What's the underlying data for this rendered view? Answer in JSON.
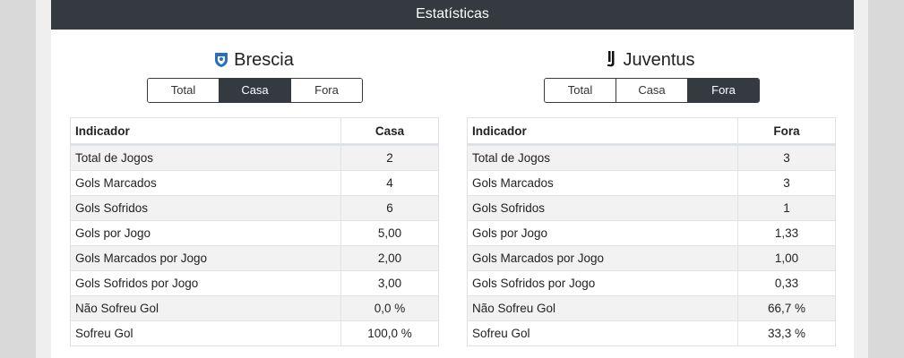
{
  "header": {
    "title": "Estatísticas"
  },
  "teams": [
    {
      "name": "Brescia",
      "tabs": [
        "Total",
        "Casa",
        "Fora"
      ],
      "active_tab": 1,
      "table": {
        "columns": [
          "Indicador",
          "Casa"
        ],
        "rows": [
          [
            "Total de Jogos",
            "2"
          ],
          [
            "Gols Marcados",
            "4"
          ],
          [
            "Gols Sofridos",
            "6"
          ],
          [
            "Gols por Jogo",
            "5,00"
          ],
          [
            "Gols Marcados por Jogo",
            "2,00"
          ],
          [
            "Gols Sofridos por Jogo",
            "3,00"
          ],
          [
            "Não Sofreu Gol",
            "0,0 %"
          ],
          [
            "Sofreu Gol",
            "100,0 %"
          ]
        ]
      }
    },
    {
      "name": "Juventus",
      "tabs": [
        "Total",
        "Casa",
        "Fora"
      ],
      "active_tab": 2,
      "table": {
        "columns": [
          "Indicador",
          "Fora"
        ],
        "rows": [
          [
            "Total de Jogos",
            "3"
          ],
          [
            "Gols Marcados",
            "3"
          ],
          [
            "Gols Sofridos",
            "1"
          ],
          [
            "Gols por Jogo",
            "1,33"
          ],
          [
            "Gols Marcados por Jogo",
            "1,00"
          ],
          [
            "Gols Sofridos por Jogo",
            "0,33"
          ],
          [
            "Não Sofreu Gol",
            "66,7 %"
          ],
          [
            "Sofreu Gol",
            "33,3 %"
          ]
        ]
      }
    }
  ]
}
